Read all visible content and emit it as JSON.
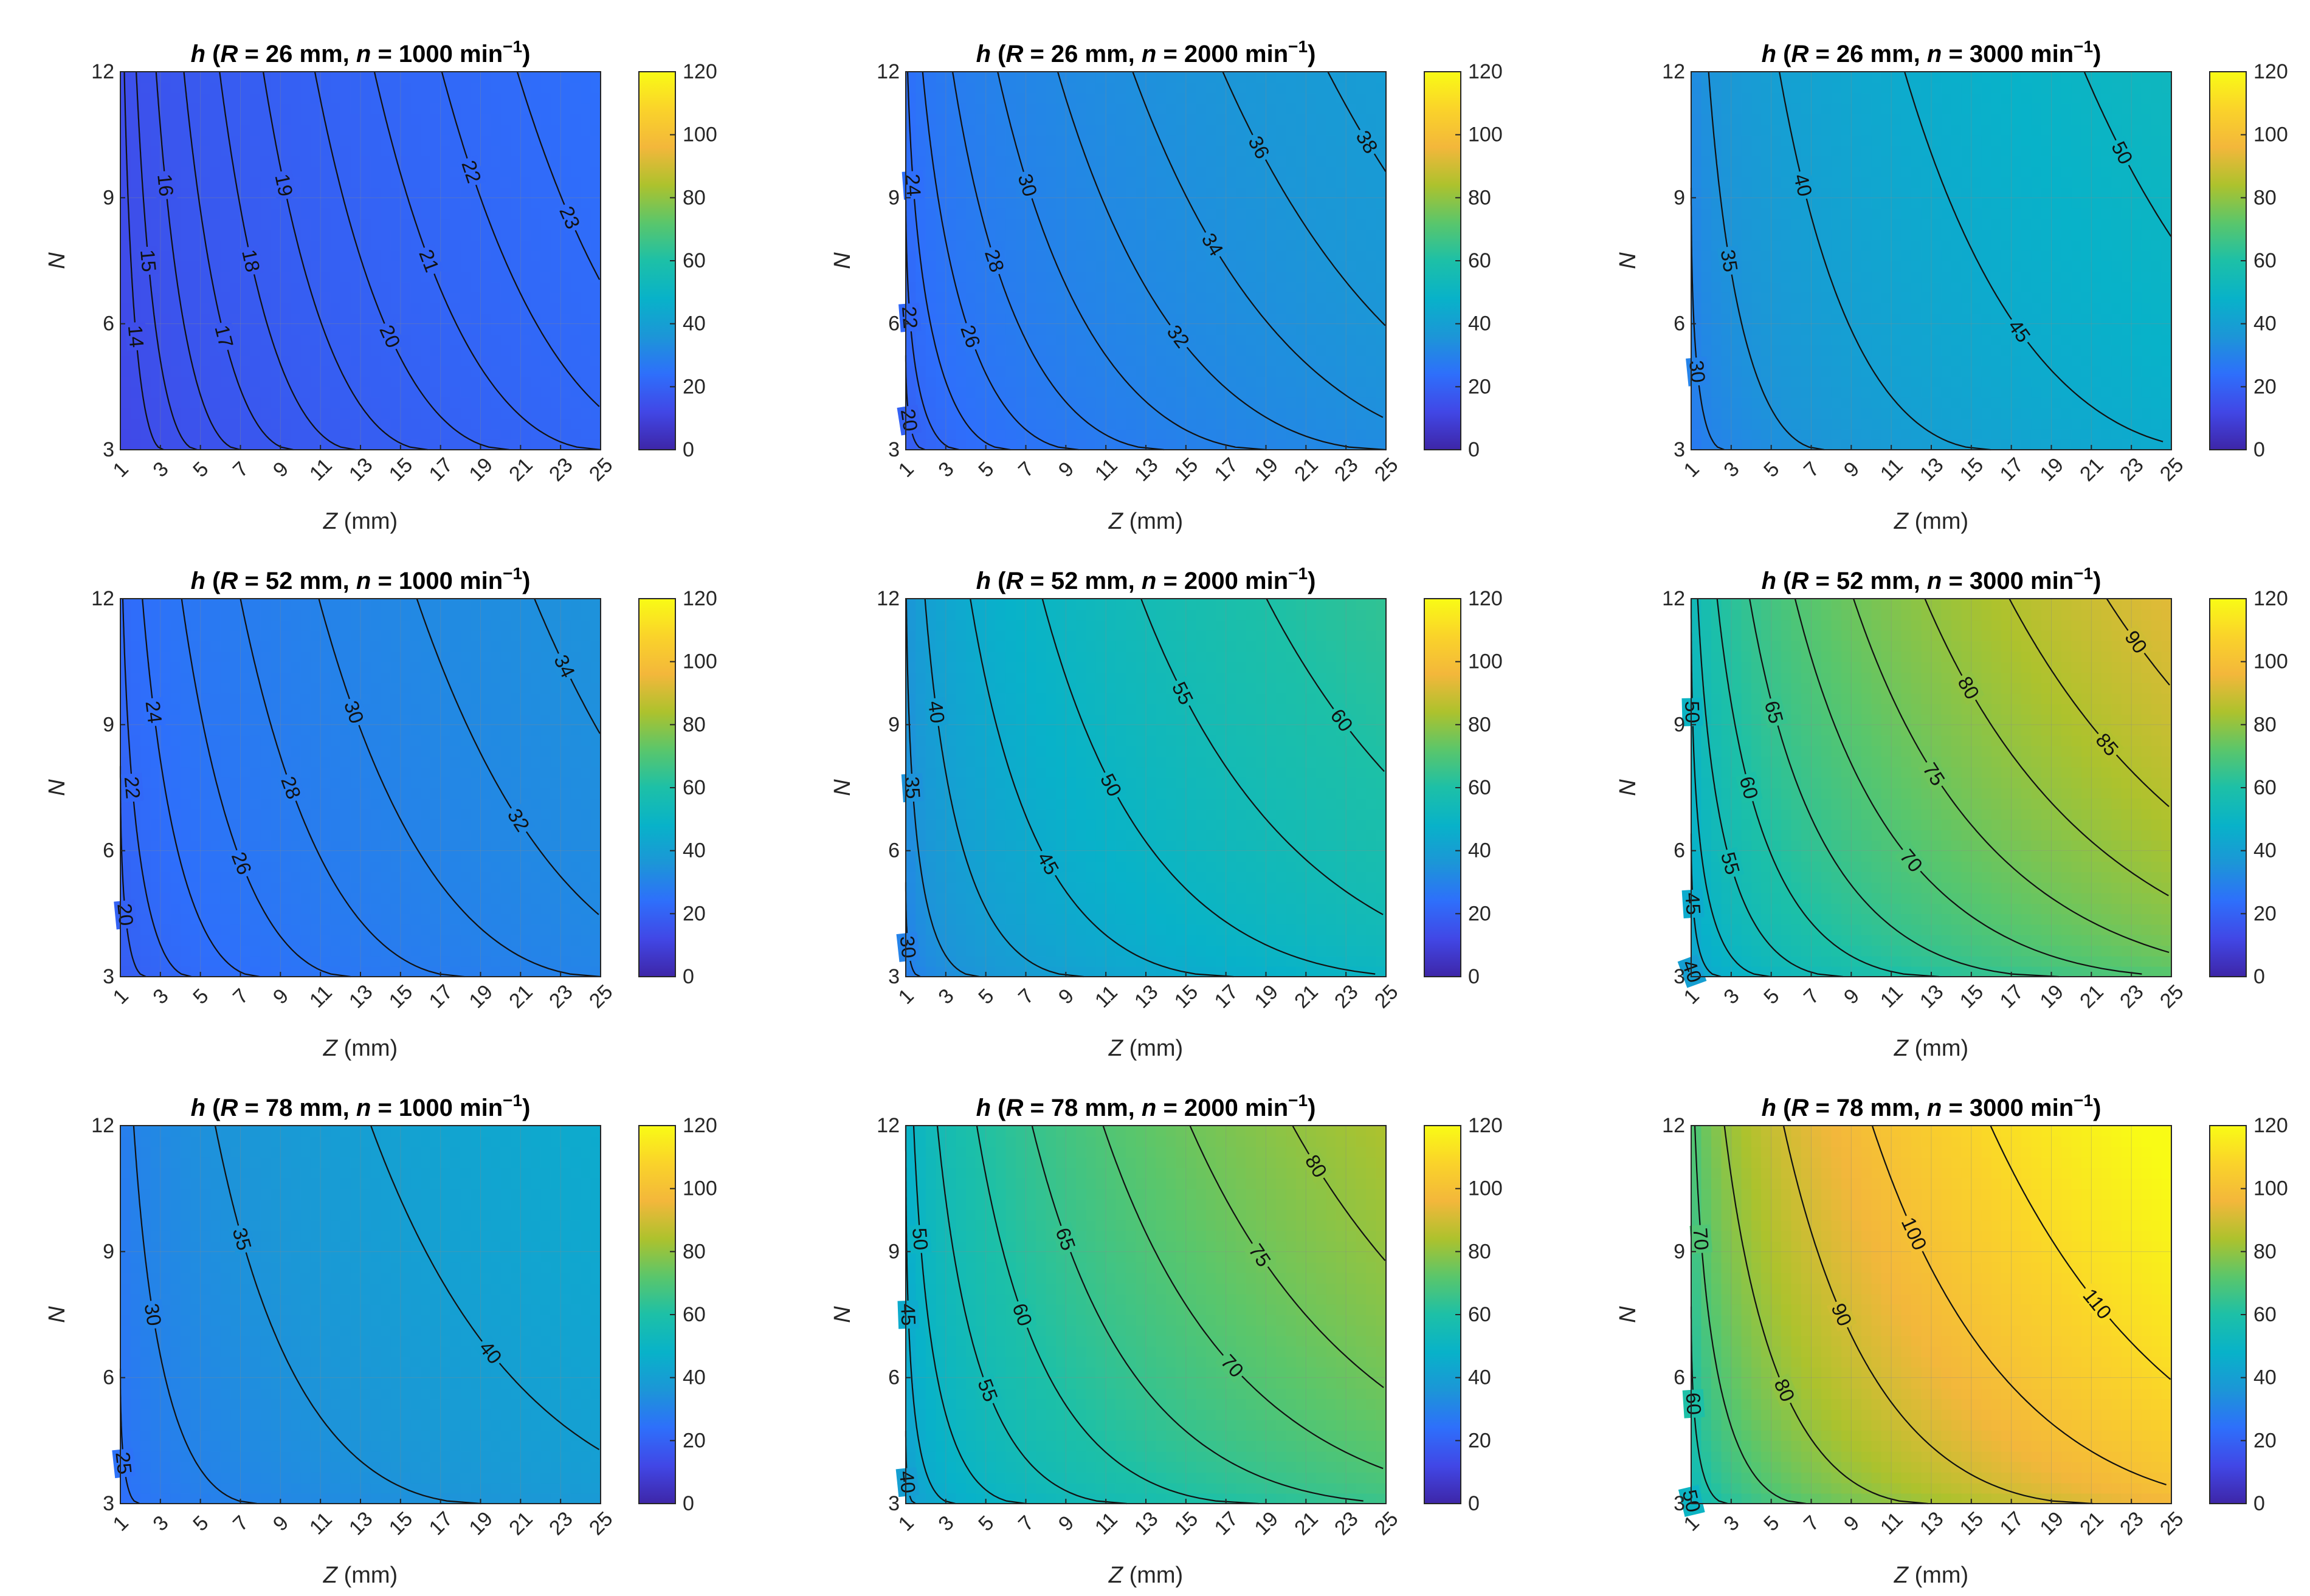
{
  "figure": {
    "colormap": "parula",
    "colors": {
      "parula": [
        "#3e26a8",
        "#4147e6",
        "#2e6ffb",
        "#1c96d7",
        "#08b2c9",
        "#1dc0a7",
        "#5ac66b",
        "#adc22d",
        "#f3b73b",
        "#fad32a",
        "#f9fb15"
      ],
      "contour_line": "#111111",
      "axis_line": "#262626",
      "grid": "#8a8a8a"
    }
  },
  "chart_data": [
    {
      "type": "contour",
      "title": {
        "var": "h",
        "R": "R",
        "R_val": " = 26 mm, ",
        "n": "n",
        "n_val": " = 1000 min",
        "sup": "−1",
        "close": ")"
      },
      "R_mm": 26,
      "n_rpm": 1000,
      "xlabel": {
        "var": "Z",
        "unit": " (mm)"
      },
      "ylabel": "N",
      "x_ticks": [
        1,
        3,
        5,
        7,
        9,
        11,
        13,
        15,
        17,
        19,
        21,
        23,
        25
      ],
      "y_ticks": [
        3,
        6,
        9,
        12
      ],
      "xlim": [
        1,
        25
      ],
      "ylim": [
        3,
        12
      ],
      "clim": [
        0,
        120
      ],
      "colorbar_ticks": [
        0,
        20,
        40,
        60,
        80,
        100,
        120
      ],
      "z_corners": {
        "low_left": 11,
        "low_right": 21,
        "high_left": 13,
        "high_right": 24
      },
      "level_labels": [
        {
          "value": 14,
          "label": "14"
        },
        {
          "value": 15,
          "label": "15"
        },
        {
          "value": 16,
          "label": "16"
        },
        {
          "value": 17,
          "label": "17"
        },
        {
          "value": 18,
          "label": "18"
        },
        {
          "value": 19,
          "label": "19"
        },
        {
          "value": 20,
          "label": "20"
        },
        {
          "value": 21,
          "label": "21"
        },
        {
          "value": 22,
          "label": "22"
        },
        {
          "value": 23,
          "label": "23"
        }
      ]
    },
    {
      "type": "contour",
      "title": {
        "var": "h",
        "R": "R",
        "R_val": " = 26 mm, ",
        "n": "n",
        "n_val": " = 2000 min",
        "sup": "−1",
        "close": ")"
      },
      "R_mm": 26,
      "n_rpm": 2000,
      "xlabel": {
        "var": "Z",
        "unit": " (mm)"
      },
      "ylabel": "N",
      "x_ticks": [
        1,
        3,
        5,
        7,
        9,
        11,
        13,
        15,
        17,
        19,
        21,
        23,
        25
      ],
      "y_ticks": [
        3,
        6,
        9,
        12
      ],
      "xlim": [
        1,
        25
      ],
      "ylim": [
        3,
        12
      ],
      "clim": [
        0,
        120
      ],
      "colorbar_ticks": [
        0,
        20,
        40,
        60,
        80,
        100,
        120
      ],
      "z_corners": {
        "low_left": 17,
        "low_right": 32,
        "high_left": 23,
        "high_right": 39
      },
      "level_labels": [
        {
          "value": 20,
          "label": "20"
        },
        {
          "value": 22,
          "label": "22"
        },
        {
          "value": 24,
          "label": "24"
        },
        {
          "value": 26,
          "label": "26"
        },
        {
          "value": 28,
          "label": "28"
        },
        {
          "value": 30,
          "label": "30"
        },
        {
          "value": 32,
          "label": "32"
        },
        {
          "value": 34,
          "label": "34"
        },
        {
          "value": 36,
          "label": "36"
        },
        {
          "value": 38,
          "label": "38"
        }
      ]
    },
    {
      "type": "contour",
      "title": {
        "var": "h",
        "R": "R",
        "R_val": " = 26 mm, ",
        "n": "n",
        "n_val": " = 3000 min",
        "sup": "−1",
        "close": ")"
      },
      "R_mm": 26,
      "n_rpm": 3000,
      "xlabel": {
        "var": "Z",
        "unit": " (mm)"
      },
      "ylabel": "N",
      "x_ticks": [
        1,
        3,
        5,
        7,
        9,
        11,
        13,
        15,
        17,
        19,
        21,
        23,
        25
      ],
      "y_ticks": [
        3,
        6,
        9,
        12
      ],
      "xlim": [
        1,
        25
      ],
      "ylim": [
        3,
        12
      ],
      "clim": [
        0,
        120
      ],
      "colorbar_ticks": [
        0,
        20,
        40,
        60,
        80,
        100,
        120
      ],
      "z_corners": {
        "low_left": 25,
        "low_right": 44,
        "high_left": 31,
        "high_right": 52
      },
      "level_labels": [
        {
          "value": 30,
          "label": "30"
        },
        {
          "value": 35,
          "label": "35"
        },
        {
          "value": 40,
          "label": "40"
        },
        {
          "value": 45,
          "label": "45"
        },
        {
          "value": 50,
          "label": "50"
        }
      ]
    },
    {
      "type": "contour",
      "title": {
        "var": "h",
        "R": "R",
        "R_val": " = 52 mm, ",
        "n": "n",
        "n_val": " = 1000 min",
        "sup": "−1",
        "close": ")"
      },
      "R_mm": 52,
      "n_rpm": 1000,
      "xlabel": {
        "var": "Z",
        "unit": " (mm)"
      },
      "ylabel": "N",
      "x_ticks": [
        1,
        3,
        5,
        7,
        9,
        11,
        13,
        15,
        17,
        19,
        21,
        23,
        25
      ],
      "y_ticks": [
        3,
        6,
        9,
        12
      ],
      "xlim": [
        1,
        25
      ],
      "ylim": [
        3,
        12
      ],
      "clim": [
        0,
        120
      ],
      "colorbar_ticks": [
        0,
        20,
        40,
        60,
        80,
        100,
        120
      ],
      "z_corners": {
        "low_left": 17,
        "low_right": 30,
        "high_left": 21,
        "high_right": 35
      },
      "level_labels": [
        {
          "value": 20,
          "label": "20"
        },
        {
          "value": 22,
          "label": "22"
        },
        {
          "value": 24,
          "label": "24"
        },
        {
          "value": 26,
          "label": "26"
        },
        {
          "value": 28,
          "label": "28"
        },
        {
          "value": 30,
          "label": "30"
        },
        {
          "value": 32,
          "label": "32"
        },
        {
          "value": 34,
          "label": "34"
        }
      ]
    },
    {
      "type": "contour",
      "title": {
        "var": "h",
        "R": "R",
        "R_val": " = 52 mm, ",
        "n": "n",
        "n_val": " = 2000 min",
        "sup": "−1",
        "close": ")"
      },
      "R_mm": 52,
      "n_rpm": 2000,
      "xlabel": {
        "var": "Z",
        "unit": " (mm)"
      },
      "ylabel": "N",
      "x_ticks": [
        1,
        3,
        5,
        7,
        9,
        11,
        13,
        15,
        17,
        19,
        21,
        23,
        25
      ],
      "y_ticks": [
        3,
        6,
        9,
        12
      ],
      "xlim": [
        1,
        25
      ],
      "ylim": [
        3,
        12
      ],
      "clim": [
        0,
        120
      ],
      "colorbar_ticks": [
        0,
        20,
        40,
        60,
        80,
        100,
        120
      ],
      "z_corners": {
        "low_left": 26,
        "low_right": 49,
        "high_left": 34,
        "high_right": 64
      },
      "level_labels": [
        {
          "value": 30,
          "label": "30"
        },
        {
          "value": 35,
          "label": "35"
        },
        {
          "value": 40,
          "label": "40"
        },
        {
          "value": 45,
          "label": "45"
        },
        {
          "value": 50,
          "label": "50"
        },
        {
          "value": 55,
          "label": "55"
        },
        {
          "value": 60,
          "label": "60"
        }
      ]
    },
    {
      "type": "contour",
      "title": {
        "var": "h",
        "R": "R",
        "R_val": " = 52 mm, ",
        "n": "n",
        "n_val": " = 3000 min",
        "sup": "−1",
        "close": ")"
      },
      "R_mm": 52,
      "n_rpm": 3000,
      "xlabel": {
        "var": "Z",
        "unit": " (mm)"
      },
      "ylabel": "N",
      "x_ticks": [
        1,
        3,
        5,
        7,
        9,
        11,
        13,
        15,
        17,
        19,
        21,
        23,
        25
      ],
      "y_ticks": [
        3,
        6,
        9,
        12
      ],
      "xlim": [
        1,
        25
      ],
      "ylim": [
        3,
        12
      ],
      "clim": [
        0,
        120
      ],
      "colorbar_ticks": [
        0,
        20,
        40,
        60,
        80,
        100,
        120
      ],
      "z_corners": {
        "low_left": 37,
        "low_right": 69,
        "high_left": 50,
        "high_right": 93
      },
      "level_labels": [
        {
          "value": 40,
          "label": "40"
        },
        {
          "value": 45,
          "label": "45"
        },
        {
          "value": 50,
          "label": "50"
        },
        {
          "value": 55,
          "label": "55"
        },
        {
          "value": 60,
          "label": "60"
        },
        {
          "value": 65,
          "label": "65"
        },
        {
          "value": 70,
          "label": "70"
        },
        {
          "value": 75,
          "label": "75"
        },
        {
          "value": 80,
          "label": "80"
        },
        {
          "value": 85,
          "label": "85"
        },
        {
          "value": 90,
          "label": "90"
        }
      ]
    },
    {
      "type": "contour",
      "title": {
        "var": "h",
        "R": "R",
        "R_val": " = 78 mm, ",
        "n": "n",
        "n_val": " = 1000 min",
        "sup": "−1",
        "close": ")"
      },
      "R_mm": 78,
      "n_rpm": 1000,
      "xlabel": {
        "var": "Z",
        "unit": " (mm)"
      },
      "ylabel": "N",
      "x_ticks": [
        1,
        3,
        5,
        7,
        9,
        11,
        13,
        15,
        17,
        19,
        21,
        23,
        25
      ],
      "y_ticks": [
        3,
        6,
        9,
        12
      ],
      "xlim": [
        1,
        25
      ],
      "ylim": [
        3,
        12
      ],
      "clim": [
        0,
        120
      ],
      "colorbar_ticks": [
        0,
        20,
        40,
        60,
        80,
        100,
        120
      ],
      "z_corners": {
        "low_left": 22,
        "low_right": 37,
        "high_left": 27,
        "high_right": 45
      },
      "level_labels": [
        {
          "value": 25,
          "label": "25"
        },
        {
          "value": 30,
          "label": "30"
        },
        {
          "value": 35,
          "label": "35"
        },
        {
          "value": 40,
          "label": "40"
        }
      ]
    },
    {
      "type": "contour",
      "title": {
        "var": "h",
        "R": "R",
        "R_val": " = 78 mm, ",
        "n": "n",
        "n_val": " = 2000 min",
        "sup": "−1",
        "close": ")"
      },
      "R_mm": 78,
      "n_rpm": 2000,
      "xlabel": {
        "var": "Z",
        "unit": " (mm)"
      },
      "ylabel": "N",
      "x_ticks": [
        1,
        3,
        5,
        7,
        9,
        11,
        13,
        15,
        17,
        19,
        21,
        23,
        25
      ],
      "y_ticks": [
        3,
        6,
        9,
        12
      ],
      "xlim": [
        1,
        25
      ],
      "ylim": [
        3,
        12
      ],
      "clim": [
        0,
        120
      ],
      "colorbar_ticks": [
        0,
        20,
        40,
        60,
        80,
        100,
        120
      ],
      "z_corners": {
        "low_left": 36,
        "low_right": 64,
        "high_left": 45,
        "high_right": 84
      },
      "level_labels": [
        {
          "value": 40,
          "label": "40"
        },
        {
          "value": 45,
          "label": "45"
        },
        {
          "value": 50,
          "label": "50"
        },
        {
          "value": 55,
          "label": "55"
        },
        {
          "value": 60,
          "label": "60"
        },
        {
          "value": 65,
          "label": "65"
        },
        {
          "value": 70,
          "label": "70"
        },
        {
          "value": 75,
          "label": "75"
        },
        {
          "value": 80,
          "label": "80"
        }
      ]
    },
    {
      "type": "contour",
      "title": {
        "var": "h",
        "R": "R",
        "R_val": " = 78 mm, ",
        "n": "n",
        "n_val": " = 3000 min",
        "sup": "−1",
        "close": ")"
      },
      "R_mm": 78,
      "n_rpm": 3000,
      "xlabel": {
        "var": "Z",
        "unit": " (mm)"
      },
      "ylabel": "N",
      "x_ticks": [
        1,
        3,
        5,
        7,
        9,
        11,
        13,
        15,
        17,
        19,
        21,
        23,
        25
      ],
      "y_ticks": [
        3,
        6,
        9,
        12
      ],
      "xlim": [
        1,
        25
      ],
      "ylim": [
        3,
        12
      ],
      "clim": [
        0,
        120
      ],
      "colorbar_ticks": [
        0,
        20,
        40,
        60,
        80,
        100,
        120
      ],
      "z_corners": {
        "low_left": 47,
        "low_right": 94,
        "high_left": 65,
        "high_right": 122
      },
      "level_labels": [
        {
          "value": 50,
          "label": "50"
        },
        {
          "value": 60,
          "label": "60"
        },
        {
          "value": 70,
          "label": "70"
        },
        {
          "value": 80,
          "label": "80"
        },
        {
          "value": 90,
          "label": "90"
        },
        {
          "value": 100,
          "label": "100"
        },
        {
          "value": 110,
          "label": "110"
        }
      ]
    }
  ]
}
